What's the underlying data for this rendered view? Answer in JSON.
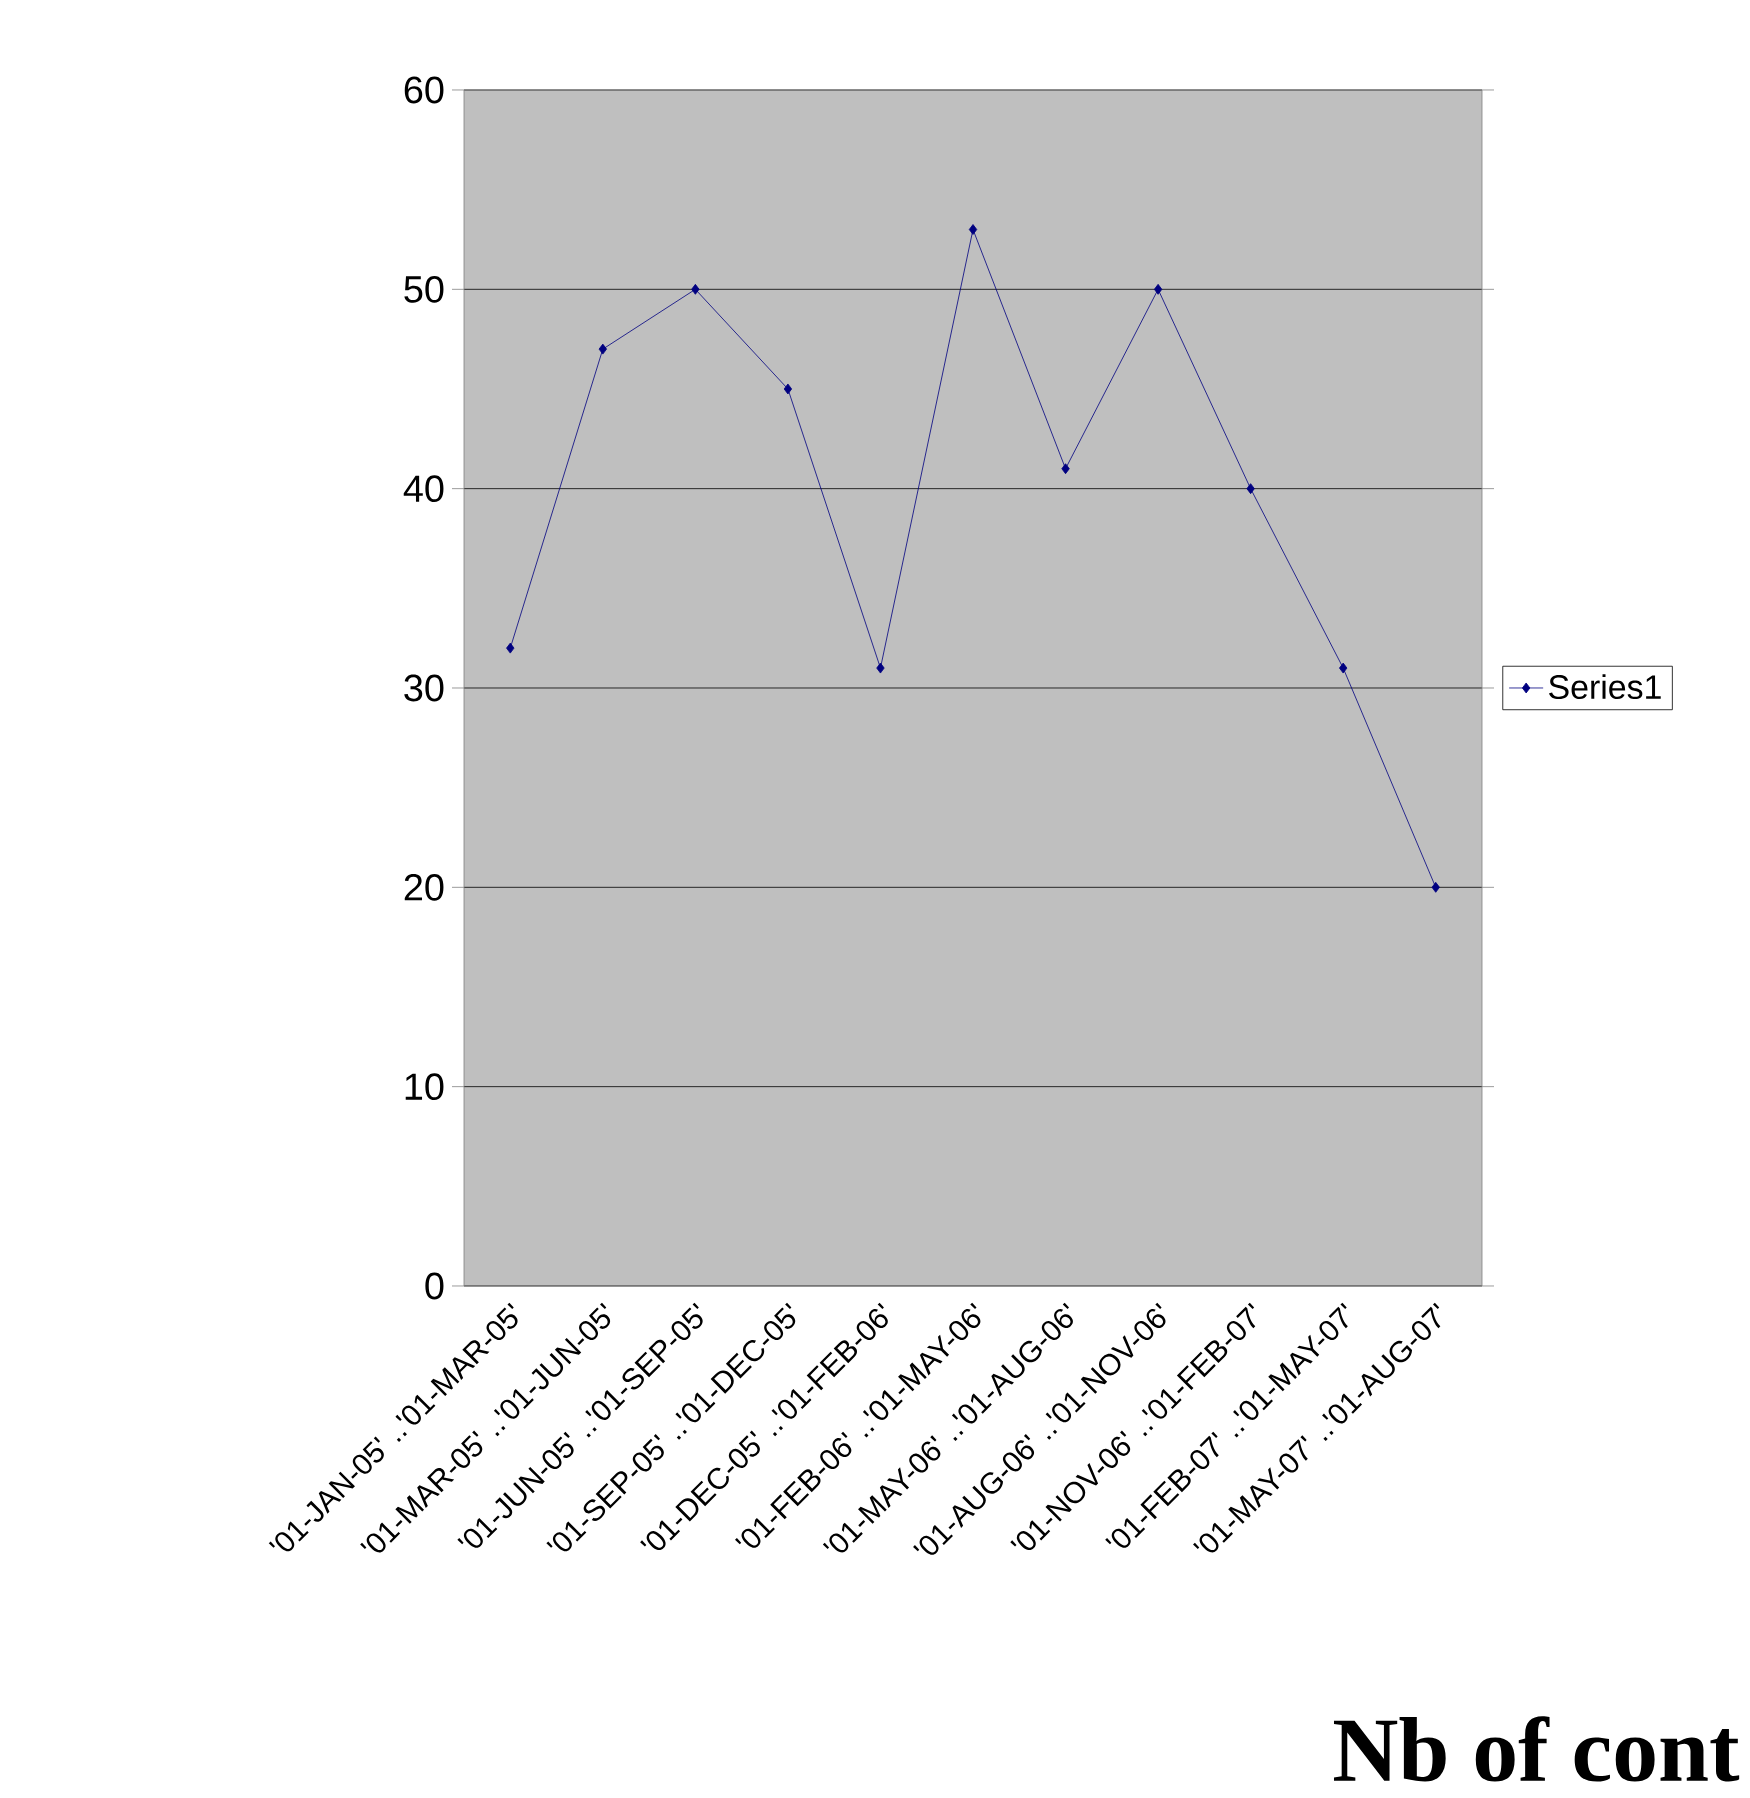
{
  "chart_data": {
    "type": "line",
    "categories": [
      "'01-JAN-05' ..'01-MAR-05'",
      "'01-MAR-05' ..'01-JUN-05'",
      "'01-JUN-05' ..'01-SEP-05'",
      "'01-SEP-05' ..'01-DEC-05'",
      "'01-DEC-05' ..'01-FEB-06'",
      "'01-FEB-06' ..'01-MAY-06'",
      "'01-MAY-06' ..'01-AUG-06'",
      "'01-AUG-06' ..'01-NOV-06'",
      "'01-NOV-06' ..'01-FEB-07'",
      "'01-FEB-07' ..'01-MAY-07'",
      "'01-MAY-07' ..'01-AUG-07'"
    ],
    "series": [
      {
        "name": "Series1",
        "color": "#000080",
        "values": [
          32,
          47,
          50,
          45,
          31,
          53,
          41,
          50,
          40,
          31,
          20
        ]
      }
    ],
    "ylim": [
      0,
      60
    ],
    "yticks": [
      0,
      10,
      20,
      30,
      40,
      50,
      60
    ],
    "grid": "y",
    "legend": "right",
    "marker": "diamond",
    "line_style": "solid",
    "annotations": [
      "Nb of cont"
    ]
  }
}
